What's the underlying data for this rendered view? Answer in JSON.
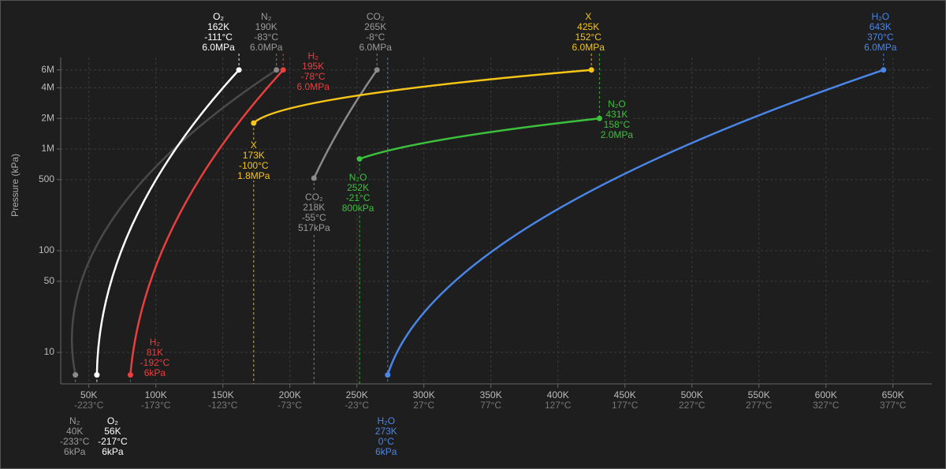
{
  "chart_data": {
    "type": "line",
    "y_label": "Pressure (kPa)",
    "log_y": true,
    "grid": true,
    "xlim": [
      29,
      679
    ],
    "ylim": [
      4.9,
      7940
    ],
    "xticks": [
      {
        "value": 50,
        "label": "50K"
      },
      {
        "value": 100,
        "label": "100K"
      },
      {
        "value": 150,
        "label": "150K"
      },
      {
        "value": 200,
        "label": "200K"
      },
      {
        "value": 250,
        "label": "250K"
      },
      {
        "value": 300,
        "label": "300K"
      },
      {
        "value": 350,
        "label": "350K"
      },
      {
        "value": 400,
        "label": "400K"
      },
      {
        "value": 450,
        "label": "450K"
      },
      {
        "value": 500,
        "label": "500K"
      },
      {
        "value": 550,
        "label": "550K"
      },
      {
        "value": 600,
        "label": "600K"
      },
      {
        "value": 650,
        "label": "650K"
      }
    ],
    "xticks_celsius": [
      {
        "value": 50,
        "label": "-223°C"
      },
      {
        "value": 100,
        "label": "-173°C"
      },
      {
        "value": 150,
        "label": "-123°C"
      },
      {
        "value": 200,
        "label": "-73°C"
      },
      {
        "value": 250,
        "label": "-23°C"
      },
      {
        "value": 300,
        "label": "27°C"
      },
      {
        "value": 350,
        "label": "77°C"
      },
      {
        "value": 400,
        "label": "127°C"
      },
      {
        "value": 450,
        "label": "177°C"
      },
      {
        "value": 500,
        "label": "227°C"
      },
      {
        "value": 550,
        "label": "277°C"
      },
      {
        "value": 600,
        "label": "327°C"
      },
      {
        "value": 650,
        "label": "377°C"
      }
    ],
    "yticks": [
      10,
      50,
      100,
      500,
      {
        "value": 1000,
        "label": "1M"
      },
      {
        "value": 2000,
        "label": "2M"
      },
      {
        "value": 4000,
        "label": "4M"
      },
      {
        "value": 6000,
        "label": "6M"
      }
    ],
    "series": [
      {
        "name": "N₂",
        "color": "#4a4a4a",
        "point_color": "#8a8a8a",
        "text_color": "#9a9a9a",
        "x": [
          40,
          190
        ],
        "values": [
          6,
          6000
        ],
        "point_labels": [
          [
            "40K",
            "-233°C",
            "6kPa"
          ],
          [
            "190K",
            "-83°C",
            "6.0MPa"
          ]
        ]
      },
      {
        "name": "O₂",
        "color": "#ffffff",
        "point_color": "#ffffff",
        "text_color": "#ffffff",
        "x": [
          56,
          162
        ],
        "values": [
          6,
          6000
        ],
        "point_labels": [
          [
            "56K",
            "-217°C",
            "6kPa"
          ],
          [
            "162K",
            "-111°C",
            "6.0MPa"
          ]
        ]
      },
      {
        "name": "H₂",
        "color": "#e8403f",
        "point_color": "#e8403f",
        "text_color": "#e8403f",
        "x": [
          81,
          195
        ],
        "values": [
          6,
          6000
        ],
        "point_labels": [
          [
            "81K",
            "-192°C",
            "6kPa"
          ],
          [
            "195K",
            "-78°C",
            "6.0MPa"
          ]
        ]
      },
      {
        "name": "CO₂",
        "color": "#8a8a8a",
        "point_color": "#8a8a8a",
        "text_color": "#9a9a9a",
        "x": [
          218,
          265
        ],
        "values": [
          517,
          6000
        ],
        "point_labels": [
          [
            "218K",
            "-55°C",
            "517kPa"
          ],
          [
            "265K",
            "-8°C",
            "6.0MPa"
          ]
        ]
      },
      {
        "name": "X",
        "color": "#f5c518",
        "point_color": "#f5c518",
        "text_color": "#f5c518",
        "x": [
          173,
          425
        ],
        "values": [
          1800,
          6000
        ],
        "point_labels": [
          [
            "173K",
            "-100°C",
            "1.8MPa"
          ],
          [
            "425K",
            "152°C",
            "6.0MPa"
          ]
        ]
      },
      {
        "name": "N₂O",
        "color": "#3cc13c",
        "point_color": "#3cc13c",
        "text_color": "#3cc13c",
        "x": [
          252,
          431
        ],
        "values": [
          800,
          2000
        ],
        "point_labels": [
          [
            "252K",
            "-21°C",
            "800kPa"
          ],
          [
            "431K",
            "158°C",
            "2.0MPa"
          ]
        ]
      },
      {
        "name": "H₂O",
        "color": "#4a86e8",
        "point_color": "#4a86e8",
        "text_color": "#4a86e8",
        "x": [
          273,
          643
        ],
        "values": [
          6,
          6000
        ],
        "point_labels": [
          [
            "273K",
            "0°C",
            "6kPa"
          ],
          [
            "643K",
            "370°C",
            "6.0MPa"
          ]
        ]
      }
    ]
  }
}
